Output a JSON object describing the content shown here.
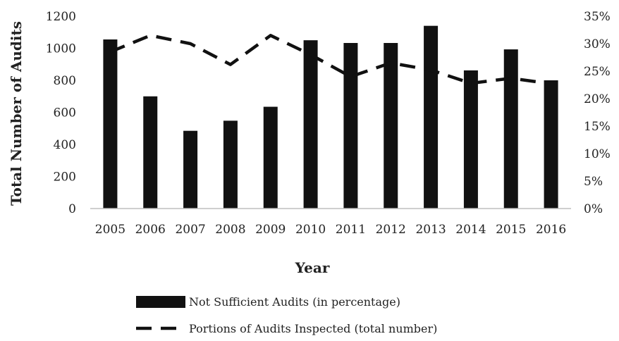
{
  "chart_data": {
    "type": "bar",
    "xlabel": "Year",
    "ylabel": "Total Number of Audits",
    "categories": [
      "2005",
      "2006",
      "2007",
      "2008",
      "2009",
      "2010",
      "2011",
      "2012",
      "2013",
      "2014",
      "2015",
      "2016"
    ],
    "ylim": [
      0,
      1200
    ],
    "yticks": [
      "0",
      "200",
      "400",
      "600",
      "800",
      "1000",
      "1200"
    ],
    "y2lim": [
      0,
      0.35
    ],
    "y2ticks": [
      "0%",
      "5%",
      "10%",
      "15%",
      "20%",
      "25%",
      "30%",
      "35%"
    ],
    "series": [
      {
        "name": "Not Sufficient Audits (in percentage)",
        "kind": "bar",
        "axis": "left",
        "color": "#111111",
        "values": [
          1055,
          700,
          485,
          548,
          635,
          1050,
          1033,
          1033,
          1140,
          862,
          993,
          800
        ]
      },
      {
        "name": "Portions of Audits Inspected (total number)",
        "kind": "line",
        "style": "dashed",
        "axis": "right",
        "color": "#111111",
        "values": [
          0.285,
          0.315,
          0.3,
          0.262,
          0.315,
          0.28,
          0.24,
          0.265,
          0.252,
          0.228,
          0.237,
          0.227
        ]
      }
    ],
    "legend_position": "bottom",
    "grid": false
  }
}
